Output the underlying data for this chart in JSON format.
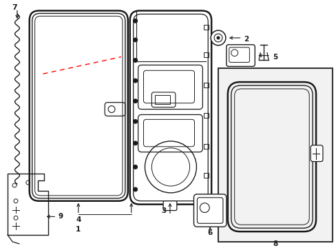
{
  "bg_color": "#ffffff",
  "line_color": "#1a1a1a",
  "label_color": "#000000",
  "fig_w": 4.89,
  "fig_h": 3.6,
  "dpi": 100
}
